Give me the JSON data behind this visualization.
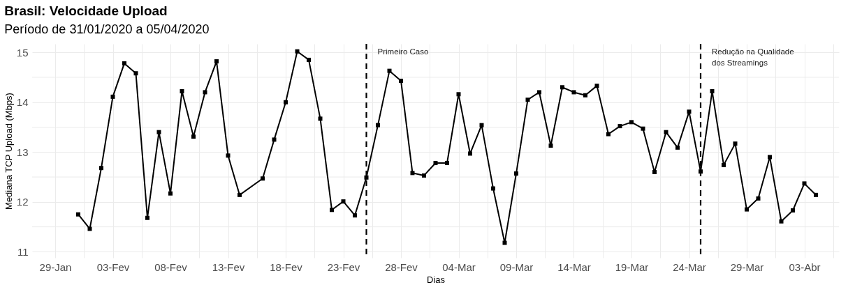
{
  "chart_data": {
    "type": "line",
    "title": "Brasil: Velocidade Upload",
    "subtitle": "Período de 31/01/2020 a 05/04/2020",
    "xlabel": "Dias",
    "ylabel": "Mediana TCP Upload (Mbps)",
    "x": [
      "2020-01-31",
      "2020-02-01",
      "2020-02-02",
      "2020-02-03",
      "2020-02-04",
      "2020-02-05",
      "2020-02-06",
      "2020-02-07",
      "2020-02-08",
      "2020-02-09",
      "2020-02-10",
      "2020-02-11",
      "2020-02-12",
      "2020-02-13",
      "2020-02-14",
      "2020-02-16",
      "2020-02-17",
      "2020-02-18",
      "2020-02-19",
      "2020-02-20",
      "2020-02-21",
      "2020-02-22",
      "2020-02-23",
      "2020-02-24",
      "2020-02-25",
      "2020-02-26",
      "2020-02-27",
      "2020-02-28",
      "2020-02-29",
      "2020-03-01",
      "2020-03-02",
      "2020-03-03",
      "2020-03-04",
      "2020-03-05",
      "2020-03-06",
      "2020-03-07",
      "2020-03-08",
      "2020-03-09",
      "2020-03-10",
      "2020-03-11",
      "2020-03-12",
      "2020-03-13",
      "2020-03-14",
      "2020-03-15",
      "2020-03-16",
      "2020-03-17",
      "2020-03-18",
      "2020-03-19",
      "2020-03-20",
      "2020-03-21",
      "2020-03-22",
      "2020-03-23",
      "2020-03-24",
      "2020-03-25",
      "2020-03-26",
      "2020-03-27",
      "2020-03-28",
      "2020-03-29",
      "2020-03-30",
      "2020-03-31",
      "2020-04-01",
      "2020-04-02",
      "2020-04-03",
      "2020-04-04"
    ],
    "series": [
      {
        "color": "#000000",
        "values": [
          11.75,
          11.46,
          12.68,
          14.11,
          14.78,
          14.58,
          11.68,
          13.4,
          12.17,
          14.22,
          13.31,
          14.2,
          14.82,
          12.93,
          12.14,
          12.47,
          13.25,
          14.0,
          15.02,
          14.85,
          13.67,
          11.84,
          12.01,
          11.73,
          12.49,
          13.54,
          14.63,
          14.43,
          12.58,
          12.53,
          12.78,
          12.78,
          14.16,
          12.97,
          13.54,
          12.27,
          11.18,
          12.57,
          14.05,
          14.2,
          13.13,
          14.3,
          14.2,
          14.14,
          14.33,
          13.36,
          13.52,
          13.6,
          13.47,
          12.6,
          13.4,
          13.09,
          13.81,
          12.61,
          14.22,
          12.74,
          13.17,
          11.85,
          12.07,
          12.9,
          11.61,
          11.83,
          12.37,
          12.14
        ]
      }
    ],
    "xlim": [
      "2020-01-27",
      "2020-04-06"
    ],
    "xticks": [
      {
        "value": "2020-01-29",
        "label": "29-Jan"
      },
      {
        "value": "2020-01-31T12:00",
        "label": null
      },
      {
        "value": "2020-02-03",
        "label": "03-Fev"
      },
      {
        "value": "2020-02-05T12:00",
        "label": null
      },
      {
        "value": "2020-02-08",
        "label": "08-Fev"
      },
      {
        "value": "2020-02-10T12:00",
        "label": null
      },
      {
        "value": "2020-02-13",
        "label": "13-Fev"
      },
      {
        "value": "2020-02-15T12:00",
        "label": null
      },
      {
        "value": "2020-02-18",
        "label": "18-Fev"
      },
      {
        "value": "2020-02-20T12:00",
        "label": null
      },
      {
        "value": "2020-02-23",
        "label": "23-Fev"
      },
      {
        "value": "2020-02-25T12:00",
        "label": null
      },
      {
        "value": "2020-02-28",
        "label": "28-Fev"
      },
      {
        "value": "2020-03-01T12:00",
        "label": null
      },
      {
        "value": "2020-03-04",
        "label": "04-Mar"
      },
      {
        "value": "2020-03-06T12:00",
        "label": null
      },
      {
        "value": "2020-03-09",
        "label": "09-Mar"
      },
      {
        "value": "2020-03-11T12:00",
        "label": null
      },
      {
        "value": "2020-03-14",
        "label": "14-Mar"
      },
      {
        "value": "2020-03-16T12:00",
        "label": null
      },
      {
        "value": "2020-03-19",
        "label": "19-Mar"
      },
      {
        "value": "2020-03-21T12:00",
        "label": null
      },
      {
        "value": "2020-03-24",
        "label": "24-Mar"
      },
      {
        "value": "2020-03-26T12:00",
        "label": null
      },
      {
        "value": "2020-03-29",
        "label": "29-Mar"
      },
      {
        "value": "2020-03-31T12:00",
        "label": null
      },
      {
        "value": "2020-04-03",
        "label": "03-Abr"
      },
      {
        "value": "2020-04-05T12:00",
        "label": null
      }
    ],
    "ylim": [
      10.88,
      15.17
    ],
    "yticks": [
      11,
      {
        "value": 11.5,
        "label": null
      },
      12,
      {
        "value": 12.5,
        "label": null
      },
      13,
      {
        "value": 13.5,
        "label": null
      },
      14,
      {
        "value": 14.5,
        "label": null
      },
      15
    ],
    "grid": true,
    "marker": "square",
    "line_style": "solid",
    "ref_lines": [
      {
        "axis": "x",
        "value": "2020-02-25",
        "label": "Primeiro Caso",
        "line_style": "dashed",
        "color": "#000000"
      },
      {
        "axis": "x",
        "value": "2020-03-25",
        "label": "Redução na Qualidade\n dos Streamings",
        "line_style": "dashed",
        "color": "#000000"
      }
    ]
  }
}
